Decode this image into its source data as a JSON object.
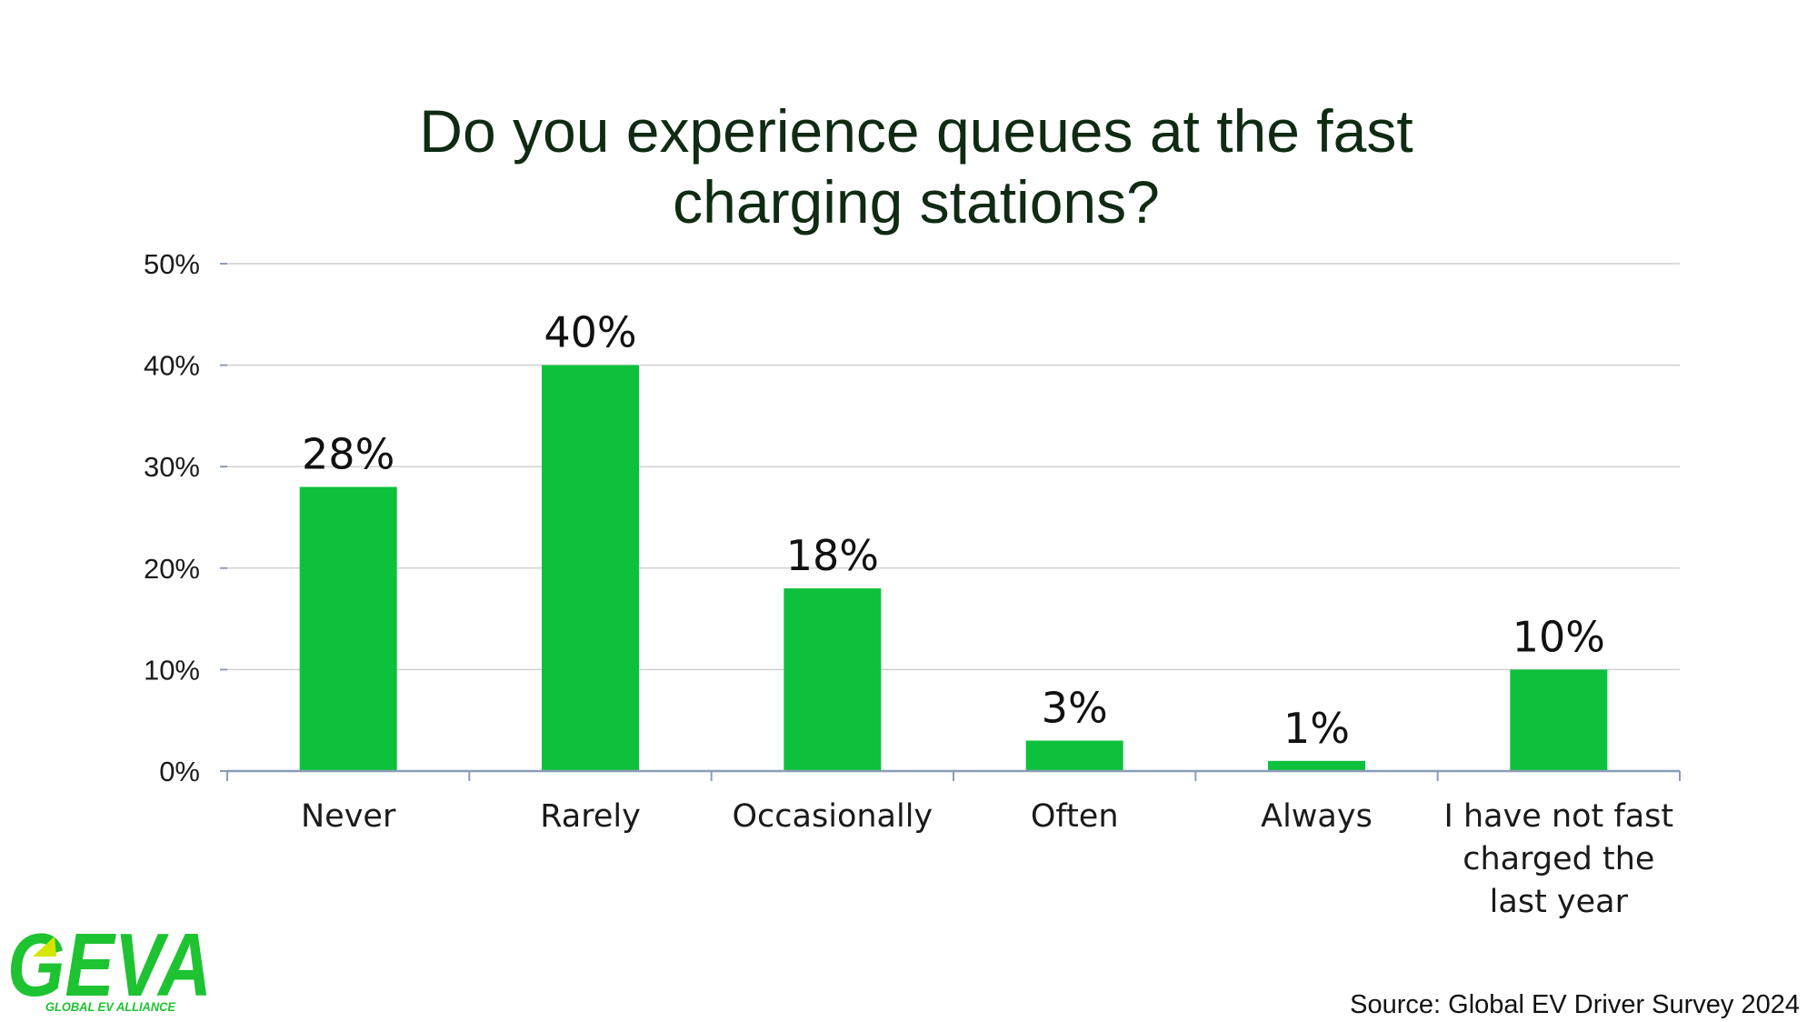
{
  "chart_data": {
    "type": "bar",
    "title_lines": [
      "Do you experience queues at the fast",
      "charging stations?"
    ],
    "categories": [
      [
        "Never"
      ],
      [
        "Rarely"
      ],
      [
        "Occasionally"
      ],
      [
        "Often"
      ],
      [
        "Always"
      ],
      [
        "I have not fast",
        "charged the",
        "last year"
      ]
    ],
    "values": [
      28,
      40,
      18,
      3,
      1,
      10
    ],
    "data_labels": [
      "28%",
      "40%",
      "18%",
      "3%",
      "1%",
      "10%"
    ],
    "xlabel": "",
    "ylabel": "",
    "ylim": [
      0,
      50
    ],
    "yticks": [
      0,
      10,
      20,
      30,
      40,
      50
    ],
    "ytick_labels": [
      "0%",
      "10%",
      "20%",
      "30%",
      "40%",
      "50%"
    ],
    "grid": true,
    "legend": "none",
    "bar_color": "#0dc13c",
    "grid_color": "#d0d0d0",
    "axis_color": "#8a9cb8"
  },
  "source_text": "Source: Global EV Driver Survey 2024",
  "logo": {
    "text": "GEVA",
    "subtitle": "GLOBAL EV ALLIANCE",
    "color": "#1ec332",
    "accent_color": "#d4e600"
  }
}
